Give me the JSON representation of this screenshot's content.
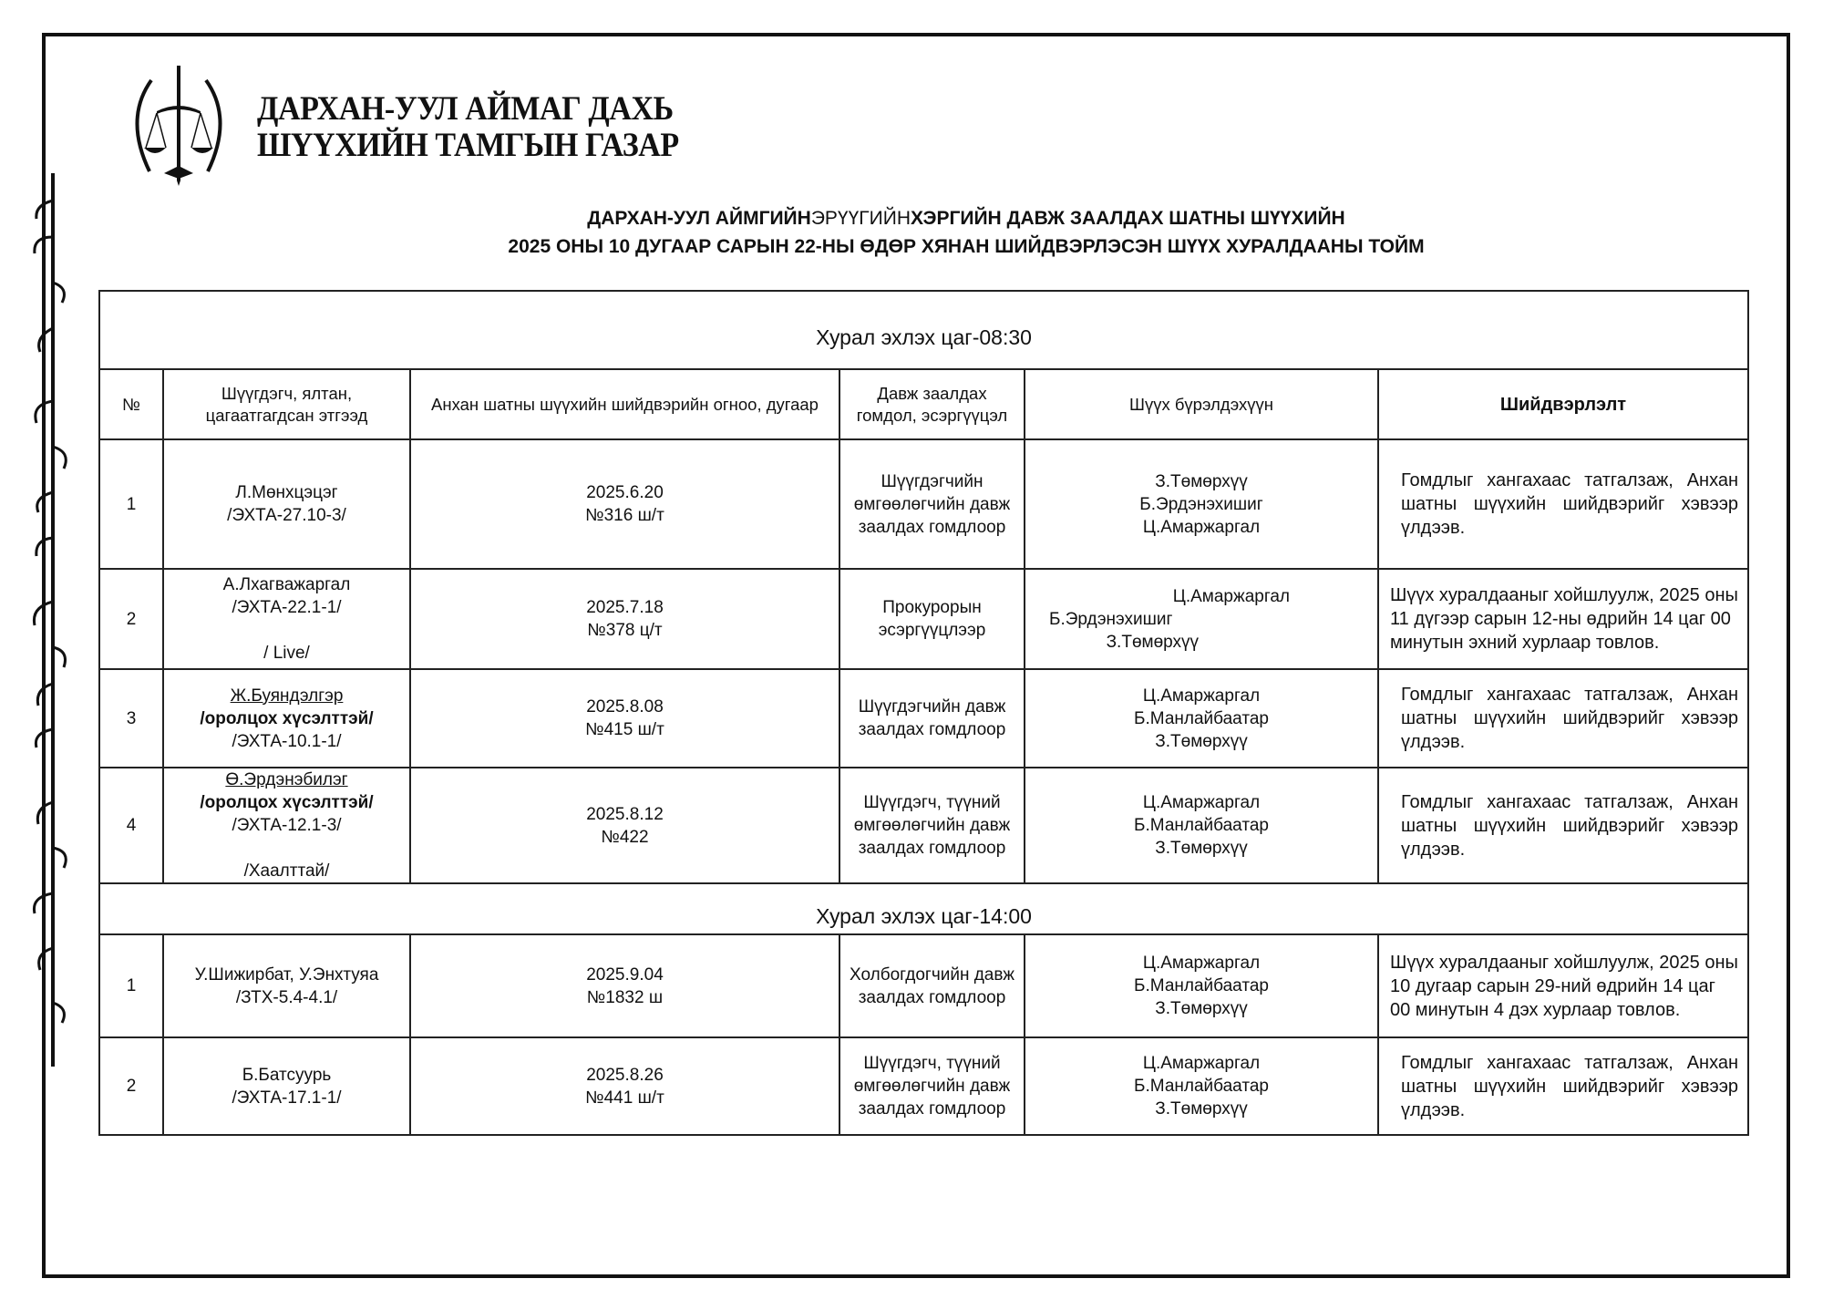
{
  "header": {
    "org_line1": "ДАРХАН-УУЛ АЙМАГ ДАХЬ",
    "org_line2": "ШҮҮХИЙН ТАМГЫН ГАЗАР",
    "title_line1_a": "ДАРХАН-УУЛ АЙМГИЙН",
    "title_line1_b": "ЭРҮҮГИЙН",
    "title_line1_c": "ХЭРГИЙН ДАВЖ ЗААЛДАХ ШАТНЫ ШҮҮХИЙН",
    "title_line2": "2025 ОНЫ 10 ДУГААР САРЫН 22-НЫ ӨДӨР ХЯНАН ШИЙДВЭРЛЭСЭН ШҮҮХ ХУРАЛДААНЫ ТОЙМ"
  },
  "table": {
    "columns": [
      "№",
      "Шүүгдэгч, ялтан, цагаатгагдсан этгээд",
      "Анхан шатны шүүхийн шийдвэрийн огноо, дугаар",
      "Давж заалдах гомдол, эсэргүүцэл",
      "Шүүх бүрэлдэхүүн",
      "Шийдвэрлэлт"
    ],
    "sessions": [
      {
        "label": "Хурал эхлэх цаг-08:30",
        "rows": [
          {
            "no": "1",
            "person": [
              "Л.Мөнхцэцэг",
              "/ЭХТА-27.10-3/"
            ],
            "date": "2025.6.20",
            "number": "№316 ш/т",
            "appeal": "Шүүгдэгчийн өмгөөлөгчийн давж заалдах гомдлоор",
            "judges": [
              "З.Төмөрхүү",
              "Б.Эрдэнэхишиг",
              "Ц.Амаржаргал"
            ],
            "decision": "Гомдлыг хангахаас татгалзаж, Анхан шатны шүүхийн шийдвэрийг хэвээр үлдээв."
          },
          {
            "no": "2",
            "person": [
              "А.Лхагважаргал",
              "/ЭХТА-22.1-1/",
              "",
              "/ Live/"
            ],
            "date": "2025.7.18",
            "number": "№378 ц/т",
            "appeal": "Прокурорын эсэргүүцлээр",
            "judges": [
              "Ц.Амаржаргал",
              "Б.Эрдэнэхишиг",
              "З.Төмөрхүү"
            ],
            "decision": "Шүүх хуралдааныг хойшлуулж, 2025 оны 11 дүгээр сарын 12-ны өдрийн 14 цаг 00 минутын эхний хурлаар товлов."
          },
          {
            "no": "3",
            "person": [
              "Ж.Буяндэлгэр",
              "/оролцох хүсэлттэй/",
              "/ЭХТА-10.1-1/"
            ],
            "date": "2025.8.08",
            "number": "№415 ш/т",
            "appeal": "Шүүгдэгчийн давж заалдах гомдлоор",
            "judges": [
              "Ц.Амаржаргал",
              "Б.Манлайбаатар",
              "З.Төмөрхүү"
            ],
            "decision": "Гомдлыг хангахаас татгалзаж, Анхан шатны шүүхийн шийдвэрийг хэвээр үлдээв."
          },
          {
            "no": "4",
            "person": [
              "Ө.Эрдэнэбилэг",
              "/оролцох хүсэлттэй/",
              "/ЭХТА-12.1-3/",
              "",
              "/Хаалттай/"
            ],
            "date": "2025.8.12",
            "number": "№422",
            "appeal": "Шүүгдэгч, түүний өмгөөлөгчийн давж заалдах гомдлоор",
            "judges": [
              "Ц.Амаржаргал",
              "Б.Манлайбаатар",
              "З.Төмөрхүү"
            ],
            "decision": "Гомдлыг хангахаас татгалзаж, Анхан шатны шүүхийн шийдвэрийг хэвээр үлдээв."
          }
        ]
      },
      {
        "label": "Хурал эхлэх цаг-14:00",
        "rows": [
          {
            "no": "1",
            "person": [
              "У.Шижирбат, У.Энхтуяа",
              "/ЗТХ-5.4-4.1/"
            ],
            "date": "2025.9.04",
            "number": "№1832 ш",
            "appeal": "Холбогдогчийн давж заалдах гомдлоор",
            "judges": [
              "Ц.Амаржаргал",
              "Б.Манлайбаатар",
              "З.Төмөрхүү"
            ],
            "decision": "Шүүх хуралдааныг хойшлуулж, 2025 оны 10 дугаар сарын 29-ний өдрийн 14 цаг 00 минутын 4 дэх хурлаар товлов."
          },
          {
            "no": "2",
            "person": [
              "Б.Батсуурь",
              "/ЭХТА-17.1-1/"
            ],
            "date": "2025.8.26",
            "number": "№441 ш/т",
            "appeal": "Шүүгдэгч, түүний өмгөөлөгчийн давж заалдах гомдлоор",
            "judges": [
              "Ц.Амаржаргал",
              "Б.Манлайбаатар",
              "З.Төмөрхүү"
            ],
            "decision": "Гомдлыг хангахаас татгалзаж, Анхан шатны шүүхийн шийдвэрийг хэвээр үлдээв."
          }
        ]
      }
    ]
  }
}
